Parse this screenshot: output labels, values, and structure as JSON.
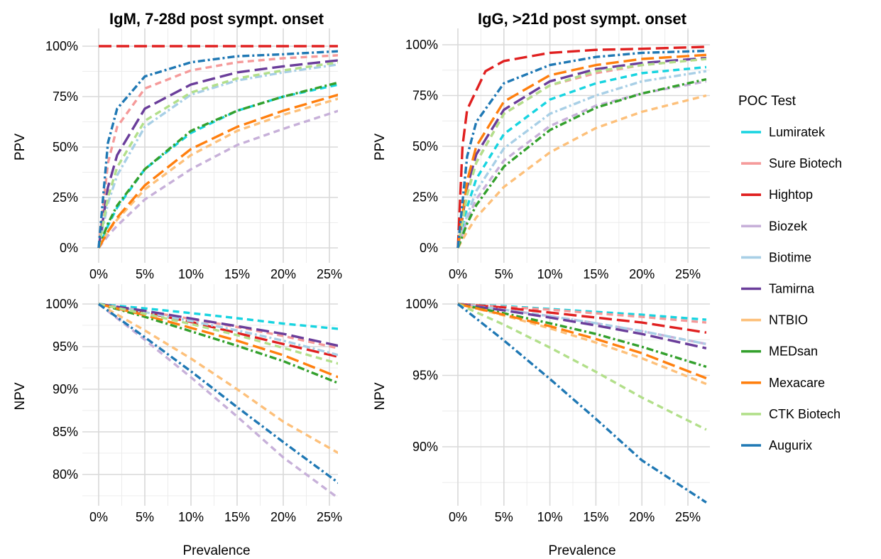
{
  "chart_data": {
    "type": "line",
    "legend": {
      "title": "POC Test",
      "placement": "right",
      "tests": [
        {
          "name": "Lumiratek",
          "color": "#17d4e0",
          "dash": "dash"
        },
        {
          "name": "Sure Biotech",
          "color": "#f59a9a",
          "dash": "dash"
        },
        {
          "name": "Hightop",
          "color": "#e02020",
          "dash": "longdash"
        },
        {
          "name": "Biozek",
          "color": "#c7b0d9",
          "dash": "dash"
        },
        {
          "name": "Biotime",
          "color": "#a8cfe6",
          "dash": "dashdot"
        },
        {
          "name": "Tamirna",
          "color": "#6a3d9a",
          "dash": "longdash"
        },
        {
          "name": "NTBIO",
          "color": "#fdc07a",
          "dash": "dash"
        },
        {
          "name": "MEDsan",
          "color": "#33a02c",
          "dash": "dashdot"
        },
        {
          "name": "Mexacare",
          "color": "#ff7f0e",
          "dash": "longdash"
        },
        {
          "name": "CTK Biotech",
          "color": "#b2df8a",
          "dash": "dash"
        },
        {
          "name": "Augurix",
          "color": "#1f78b4",
          "dash": "dashdot"
        }
      ]
    },
    "xlabel": "Prevalence",
    "x_ticks": [
      "0%",
      "5%",
      "10%",
      "15%",
      "20%",
      "25%"
    ],
    "panels": [
      {
        "id": "igm-ppv",
        "title": "IgM, 7-28d post sympt. onset",
        "ylabel": "PPV",
        "metric": "ppv",
        "xlim": [
          0,
          0.26
        ],
        "ylim": [
          0,
          1.0
        ],
        "y_ticks": [
          {
            "v": 0,
            "label": "0%"
          },
          {
            "v": 0.25,
            "label": "25%"
          },
          {
            "v": 0.5,
            "label": "50%"
          },
          {
            "v": 0.75,
            "label": "75%"
          },
          {
            "v": 1.0,
            "label": "100%"
          }
        ]
      },
      {
        "id": "igg-ppv",
        "title": "IgG, >21d post sympt. onset",
        "ylabel": "PPV",
        "metric": "ppv",
        "xlim": [
          0,
          0.27
        ],
        "ylim": [
          0,
          1.0
        ],
        "y_ticks": [
          {
            "v": 0,
            "label": "0%"
          },
          {
            "v": 0.25,
            "label": "25%"
          },
          {
            "v": 0.5,
            "label": "50%"
          },
          {
            "v": 0.75,
            "label": "75%"
          },
          {
            "v": 1.0,
            "label": "100%"
          }
        ]
      },
      {
        "id": "igm-npv",
        "title": "",
        "ylabel": "NPV",
        "metric": "npv",
        "xlim": [
          0,
          0.26
        ],
        "ylim": [
          0.75,
          1.0
        ],
        "y_ticks": [
          {
            "v": 0.8,
            "label": "80%"
          },
          {
            "v": 0.85,
            "label": "85%"
          },
          {
            "v": 0.9,
            "label": "90%"
          },
          {
            "v": 0.95,
            "label": "95%"
          },
          {
            "v": 1.0,
            "label": "100%"
          }
        ]
      },
      {
        "id": "igg-npv",
        "title": "",
        "ylabel": "NPV",
        "metric": "npv",
        "xlim": [
          0,
          0.27
        ],
        "ylim": [
          0.86,
          1.0
        ],
        "y_ticks": [
          {
            "v": 0.9,
            "label": "90%"
          },
          {
            "v": 0.95,
            "label": "95%"
          },
          {
            "v": 1.0,
            "label": "100%"
          }
        ]
      }
    ],
    "series": {
      "igm-ppv": [
        {
          "name": "Lumiratek",
          "x": [
            0,
            0.01,
            0.02,
            0.05,
            0.1,
            0.15,
            0.2,
            0.26
          ],
          "y": [
            0,
            0.11,
            0.2,
            0.39,
            0.57,
            0.68,
            0.75,
            0.81
          ]
        },
        {
          "name": "Sure Biotech",
          "x": [
            0,
            0.01,
            0.02,
            0.05,
            0.1,
            0.15,
            0.2,
            0.26
          ],
          "y": [
            0,
            0.42,
            0.6,
            0.79,
            0.88,
            0.92,
            0.94,
            0.955
          ]
        },
        {
          "name": "Hightop",
          "x": [
            0.0,
            0.01,
            0.26
          ],
          "y": [
            1.0,
            1.0,
            1.0
          ]
        },
        {
          "name": "Biozek",
          "x": [
            0,
            0.01,
            0.02,
            0.05,
            0.1,
            0.15,
            0.2,
            0.26
          ],
          "y": [
            0,
            0.06,
            0.11,
            0.24,
            0.39,
            0.51,
            0.59,
            0.68
          ]
        },
        {
          "name": "Biotime",
          "x": [
            0,
            0.01,
            0.02,
            0.05,
            0.1,
            0.15,
            0.2,
            0.26
          ],
          "y": [
            0,
            0.22,
            0.36,
            0.6,
            0.76,
            0.83,
            0.87,
            0.91
          ]
        },
        {
          "name": "Tamirna",
          "x": [
            0,
            0.01,
            0.02,
            0.05,
            0.1,
            0.15,
            0.2,
            0.26
          ],
          "y": [
            0,
            0.3,
            0.46,
            0.69,
            0.81,
            0.87,
            0.9,
            0.93
          ]
        },
        {
          "name": "NTBIO",
          "x": [
            0,
            0.01,
            0.02,
            0.05,
            0.1,
            0.15,
            0.2,
            0.26
          ],
          "y": [
            0,
            0.08,
            0.14,
            0.29,
            0.46,
            0.58,
            0.66,
            0.74
          ]
        },
        {
          "name": "MEDsan",
          "x": [
            0,
            0.01,
            0.02,
            0.05,
            0.1,
            0.15,
            0.2,
            0.26
          ],
          "y": [
            0,
            0.12,
            0.21,
            0.39,
            0.58,
            0.68,
            0.75,
            0.82
          ]
        },
        {
          "name": "Mexacare",
          "x": [
            0,
            0.01,
            0.02,
            0.05,
            0.1,
            0.15,
            0.2,
            0.26
          ],
          "y": [
            0,
            0.08,
            0.15,
            0.31,
            0.49,
            0.6,
            0.68,
            0.76
          ]
        },
        {
          "name": "CTK Biotech",
          "x": [
            0,
            0.01,
            0.02,
            0.05,
            0.1,
            0.15,
            0.2,
            0.26
          ],
          "y": [
            0,
            0.25,
            0.4,
            0.63,
            0.77,
            0.84,
            0.88,
            0.92
          ]
        },
        {
          "name": "Augurix",
          "x": [
            0,
            0.01,
            0.02,
            0.05,
            0.1,
            0.15,
            0.2,
            0.26
          ],
          "y": [
            0,
            0.52,
            0.69,
            0.85,
            0.92,
            0.95,
            0.96,
            0.975
          ]
        }
      ],
      "igg-ppv": [
        {
          "name": "Lumiratek",
          "x": [
            0,
            0.01,
            0.02,
            0.05,
            0.1,
            0.15,
            0.2,
            0.27
          ],
          "y": [
            0,
            0.2,
            0.34,
            0.56,
            0.73,
            0.81,
            0.86,
            0.89
          ]
        },
        {
          "name": "Sure Biotech",
          "x": [
            0,
            0.01,
            0.02,
            0.05,
            0.1,
            0.15,
            0.2,
            0.27
          ],
          "y": [
            0,
            0.27,
            0.42,
            0.66,
            0.8,
            0.86,
            0.9,
            0.93
          ]
        },
        {
          "name": "Hightop",
          "x": [
            0,
            0.005,
            0.01,
            0.03,
            0.05,
            0.1,
            0.15,
            0.2,
            0.27
          ],
          "y": [
            0,
            0.5,
            0.68,
            0.87,
            0.92,
            0.96,
            0.975,
            0.98,
            0.99
          ]
        },
        {
          "name": "Biozek",
          "x": [
            0,
            0.01,
            0.02,
            0.05,
            0.1,
            0.15,
            0.2,
            0.27
          ],
          "y": [
            0,
            0.14,
            0.24,
            0.43,
            0.6,
            0.7,
            0.76,
            0.82
          ]
        },
        {
          "name": "Biotime",
          "x": [
            0,
            0.01,
            0.02,
            0.05,
            0.1,
            0.15,
            0.2,
            0.27
          ],
          "y": [
            0,
            0.16,
            0.28,
            0.49,
            0.66,
            0.75,
            0.82,
            0.87
          ]
        },
        {
          "name": "Tamirna",
          "x": [
            0,
            0.01,
            0.02,
            0.05,
            0.1,
            0.15,
            0.2,
            0.27
          ],
          "y": [
            0,
            0.3,
            0.46,
            0.68,
            0.82,
            0.88,
            0.91,
            0.935
          ]
        },
        {
          "name": "NTBIO",
          "x": [
            0,
            0.01,
            0.02,
            0.05,
            0.1,
            0.15,
            0.2,
            0.27
          ],
          "y": [
            0,
            0.08,
            0.15,
            0.3,
            0.47,
            0.59,
            0.67,
            0.75
          ]
        },
        {
          "name": "MEDsan",
          "x": [
            0,
            0.01,
            0.02,
            0.05,
            0.1,
            0.15,
            0.2,
            0.27
          ],
          "y": [
            0,
            0.12,
            0.21,
            0.4,
            0.58,
            0.69,
            0.76,
            0.83
          ]
        },
        {
          "name": "Mexacare",
          "x": [
            0,
            0.01,
            0.02,
            0.05,
            0.1,
            0.15,
            0.2,
            0.27
          ],
          "y": [
            0,
            0.33,
            0.5,
            0.72,
            0.85,
            0.9,
            0.93,
            0.95
          ]
        },
        {
          "name": "CTK Biotech",
          "x": [
            0,
            0.01,
            0.02,
            0.05,
            0.1,
            0.15,
            0.2,
            0.27
          ],
          "y": [
            0,
            0.26,
            0.42,
            0.66,
            0.8,
            0.87,
            0.9,
            0.93
          ]
        },
        {
          "name": "Augurix",
          "x": [
            0,
            0.01,
            0.02,
            0.05,
            0.1,
            0.15,
            0.2,
            0.27
          ],
          "y": [
            0,
            0.45,
            0.62,
            0.81,
            0.9,
            0.94,
            0.96,
            0.97
          ]
        }
      ],
      "igm-npv": [
        {
          "name": "Lumiratek",
          "x": [
            0,
            0.05,
            0.1,
            0.15,
            0.2,
            0.26
          ],
          "y": [
            1.0,
            0.9948,
            0.9893,
            0.9833,
            0.977,
            0.9708
          ]
        },
        {
          "name": "Sure Biotech",
          "x": [
            0,
            0.05,
            0.1,
            0.15,
            0.2,
            0.26
          ],
          "y": [
            1.0,
            0.9915,
            0.9825,
            0.973,
            0.9625,
            0.948
          ]
        },
        {
          "name": "Hightop",
          "x": [
            0,
            0.05,
            0.1,
            0.15,
            0.2,
            0.26
          ],
          "y": [
            1.0,
            0.99,
            0.979,
            0.966,
            0.953,
            0.938
          ]
        },
        {
          "name": "Biozek",
          "x": [
            0,
            0.05,
            0.1,
            0.15,
            0.2,
            0.26
          ],
          "y": [
            1.0,
            0.958,
            0.914,
            0.868,
            0.82,
            0.772
          ]
        },
        {
          "name": "Biotime",
          "x": [
            0,
            0.05,
            0.1,
            0.15,
            0.2,
            0.26
          ],
          "y": [
            1.0,
            0.9905,
            0.98,
            0.969,
            0.957,
            0.94
          ]
        },
        {
          "name": "Tamirna",
          "x": [
            0,
            0.05,
            0.1,
            0.15,
            0.2,
            0.26
          ],
          "y": [
            1.0,
            0.992,
            0.983,
            0.974,
            0.965,
            0.951
          ]
        },
        {
          "name": "NTBIO",
          "x": [
            0,
            0.05,
            0.1,
            0.15,
            0.2,
            0.26
          ],
          "y": [
            1.0,
            0.969,
            0.936,
            0.9,
            0.862,
            0.825
          ]
        },
        {
          "name": "MEDsan",
          "x": [
            0,
            0.05,
            0.1,
            0.15,
            0.2,
            0.26
          ],
          "y": [
            1.0,
            0.985,
            0.968,
            0.951,
            0.933,
            0.907
          ]
        },
        {
          "name": "Mexacare",
          "x": [
            0,
            0.05,
            0.1,
            0.15,
            0.2,
            0.26
          ],
          "y": [
            1.0,
            0.987,
            0.972,
            0.957,
            0.94,
            0.914
          ]
        },
        {
          "name": "CTK Biotech",
          "x": [
            0,
            0.05,
            0.1,
            0.15,
            0.2,
            0.26
          ],
          "y": [
            1.0,
            0.9885,
            0.9765,
            0.9635,
            0.9485,
            0.93
          ]
        },
        {
          "name": "Augurix",
          "x": [
            0,
            0.05,
            0.1,
            0.15,
            0.2,
            0.26
          ],
          "y": [
            1.0,
            0.961,
            0.921,
            0.879,
            0.838,
            0.79
          ]
        }
      ],
      "igg-npv": [
        {
          "name": "Lumiratek",
          "x": [
            0,
            0.05,
            0.1,
            0.15,
            0.2,
            0.27
          ],
          "y": [
            1.0,
            0.9985,
            0.9965,
            0.9945,
            0.9925,
            0.989
          ]
        },
        {
          "name": "Sure Biotech",
          "x": [
            0,
            0.05,
            0.1,
            0.15,
            0.2,
            0.27
          ],
          "y": [
            1.0,
            0.998,
            0.996,
            0.9935,
            0.991,
            0.987
          ]
        },
        {
          "name": "Hightop",
          "x": [
            0,
            0.05,
            0.1,
            0.15,
            0.2,
            0.27
          ],
          "y": [
            1.0,
            0.9975,
            0.994,
            0.9905,
            0.987,
            0.98
          ]
        },
        {
          "name": "Biozek",
          "x": [
            0,
            0.05,
            0.1,
            0.15,
            0.2,
            0.27
          ],
          "y": [
            1.0,
            0.996,
            0.9915,
            0.9865,
            0.981,
            0.972
          ]
        },
        {
          "name": "Biotime",
          "x": [
            0,
            0.05,
            0.1,
            0.15,
            0.2,
            0.27
          ],
          "y": [
            1.0,
            0.996,
            0.9915,
            0.9865,
            0.981,
            0.972
          ]
        },
        {
          "name": "Tamirna",
          "x": [
            0,
            0.05,
            0.1,
            0.15,
            0.2,
            0.27
          ],
          "y": [
            1.0,
            0.9955,
            0.9905,
            0.985,
            0.979,
            0.969
          ]
        },
        {
          "name": "NTBIO",
          "x": [
            0,
            0.05,
            0.1,
            0.15,
            0.2,
            0.27
          ],
          "y": [
            1.0,
            0.992,
            0.983,
            0.973,
            0.962,
            0.944
          ]
        },
        {
          "name": "MEDsan",
          "x": [
            0,
            0.05,
            0.1,
            0.15,
            0.2,
            0.27
          ],
          "y": [
            1.0,
            0.9935,
            0.9865,
            0.979,
            0.97,
            0.956
          ]
        },
        {
          "name": "Mexacare",
          "x": [
            0,
            0.05,
            0.1,
            0.15,
            0.2,
            0.27
          ],
          "y": [
            1.0,
            0.9925,
            0.9845,
            0.9755,
            0.9655,
            0.948
          ]
        },
        {
          "name": "CTK Biotech",
          "x": [
            0,
            0.05,
            0.1,
            0.15,
            0.2,
            0.27
          ],
          "y": [
            1.0,
            0.9855,
            0.9695,
            0.9525,
            0.9345,
            0.912
          ]
        },
        {
          "name": "Augurix",
          "x": [
            0,
            0.05,
            0.1,
            0.15,
            0.2,
            0.27
          ],
          "y": [
            1.0,
            0.9745,
            0.9475,
            0.9195,
            0.8905,
            0.861
          ]
        }
      ]
    }
  }
}
